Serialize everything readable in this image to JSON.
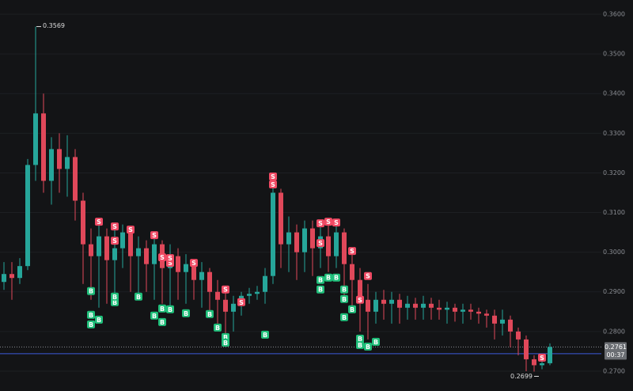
{
  "chart_data": {
    "type": "candlestick",
    "ylim": [
      0.265,
      0.3636
    ],
    "yticks": [
      {
        "value": 0.27,
        "label": "0.2700"
      },
      {
        "value": 0.28,
        "label": "0.2800"
      },
      {
        "value": 0.29,
        "label": "0.2900"
      },
      {
        "value": 0.3,
        "label": "0.3000"
      },
      {
        "value": 0.31,
        "label": "0.3100"
      },
      {
        "value": 0.32,
        "label": "0.3200"
      },
      {
        "value": 0.33,
        "label": "0.3300"
      },
      {
        "value": 0.34,
        "label": "0.3400"
      },
      {
        "value": 0.35,
        "label": "0.3500"
      },
      {
        "value": 0.36,
        "label": "0.3600"
      }
    ],
    "grid": true,
    "up_color": "#26a69a",
    "down_color": "#e0485a",
    "open": [
      0.2925,
      0.2945,
      0.2935,
      0.2965,
      0.322,
      0.335,
      0.318,
      0.326,
      0.321,
      0.324,
      0.313,
      0.302,
      0.299,
      0.304,
      0.298,
      0.301,
      0.305,
      0.299,
      0.301,
      0.297,
      0.302,
      0.296,
      0.299,
      0.295,
      0.297,
      0.293,
      0.295,
      0.29,
      0.288,
      0.285,
      0.287,
      0.289,
      0.2895,
      0.29,
      0.294,
      0.315,
      0.302,
      0.305,
      0.3,
      0.306,
      0.301,
      0.304,
      0.299,
      0.305,
      0.297,
      0.293,
      0.288,
      0.285,
      0.288,
      0.287,
      0.288,
      0.286,
      0.287,
      0.286,
      0.287,
      0.286,
      0.2855,
      0.286,
      0.285,
      0.2855,
      0.285,
      0.2845,
      0.284,
      0.282,
      0.283,
      0.28,
      0.278,
      0.273,
      0.2715,
      0.272
    ],
    "high": [
      0.2975,
      0.2975,
      0.2985,
      0.3235,
      0.3569,
      0.34,
      0.329,
      0.33,
      0.3295,
      0.326,
      0.315,
      0.306,
      0.307,
      0.306,
      0.306,
      0.307,
      0.306,
      0.304,
      0.303,
      0.305,
      0.303,
      0.302,
      0.301,
      0.2995,
      0.298,
      0.2975,
      0.296,
      0.293,
      0.291,
      0.289,
      0.29,
      0.291,
      0.2915,
      0.296,
      0.318,
      0.316,
      0.309,
      0.307,
      0.308,
      0.308,
      0.307,
      0.307,
      0.307,
      0.306,
      0.3,
      0.296,
      0.292,
      0.29,
      0.2905,
      0.29,
      0.2895,
      0.289,
      0.2885,
      0.289,
      0.2885,
      0.288,
      0.2875,
      0.287,
      0.287,
      0.287,
      0.286,
      0.2855,
      0.2855,
      0.2855,
      0.284,
      0.281,
      0.279,
      0.274,
      0.2735,
      0.277
    ],
    "low": [
      0.2905,
      0.288,
      0.292,
      0.2955,
      0.318,
      0.315,
      0.312,
      0.315,
      0.314,
      0.308,
      0.292,
      0.288,
      0.286,
      0.287,
      0.288,
      0.296,
      0.29,
      0.289,
      0.29,
      0.288,
      0.287,
      0.285,
      0.288,
      0.287,
      0.288,
      0.286,
      0.285,
      0.282,
      0.279,
      0.28,
      0.284,
      0.287,
      0.288,
      0.287,
      0.292,
      0.296,
      0.295,
      0.293,
      0.295,
      0.294,
      0.296,
      0.295,
      0.296,
      0.288,
      0.286,
      0.28,
      0.278,
      0.282,
      0.283,
      0.282,
      0.282,
      0.283,
      0.283,
      0.283,
      0.283,
      0.283,
      0.282,
      0.2825,
      0.282,
      0.283,
      0.282,
      0.281,
      0.278,
      0.279,
      0.276,
      0.274,
      0.27,
      0.2699,
      0.2705,
      0.2715
    ],
    "close": [
      0.2945,
      0.2935,
      0.2965,
      0.322,
      0.335,
      0.318,
      0.326,
      0.321,
      0.324,
      0.313,
      0.302,
      0.299,
      0.304,
      0.298,
      0.301,
      0.305,
      0.299,
      0.301,
      0.297,
      0.302,
      0.296,
      0.299,
      0.295,
      0.297,
      0.293,
      0.295,
      0.29,
      0.288,
      0.285,
      0.287,
      0.289,
      0.2895,
      0.29,
      0.294,
      0.315,
      0.302,
      0.305,
      0.3,
      0.306,
      0.301,
      0.304,
      0.299,
      0.305,
      0.297,
      0.293,
      0.288,
      0.285,
      0.288,
      0.287,
      0.288,
      0.286,
      0.287,
      0.286,
      0.287,
      0.286,
      0.2855,
      0.286,
      0.285,
      0.2855,
      0.285,
      0.2845,
      0.284,
      0.282,
      0.283,
      0.28,
      0.278,
      0.273,
      0.2715,
      0.272,
      0.2761
    ],
    "buy_label": "B",
    "sell_label": "S",
    "buy_color": "#1fbf7a",
    "sell_color": "#f04a64",
    "buys": [
      [
        11,
        0.2902
      ],
      [
        11,
        0.2842
      ],
      [
        11,
        0.2818
      ],
      [
        12,
        0.283
      ],
      [
        14,
        0.2874
      ],
      [
        14,
        0.2888
      ],
      [
        17,
        0.2888
      ],
      [
        19,
        0.284
      ],
      [
        20,
        0.2858
      ],
      [
        20,
        0.2824
      ],
      [
        21,
        0.2856
      ],
      [
        23,
        0.2846
      ],
      [
        26,
        0.2844
      ],
      [
        27,
        0.281
      ],
      [
        28,
        0.2786
      ],
      [
        28,
        0.2772
      ],
      [
        33,
        0.2792
      ],
      [
        40,
        0.293
      ],
      [
        40,
        0.2906
      ],
      [
        41,
        0.2936
      ],
      [
        42,
        0.2936
      ],
      [
        43,
        0.2906
      ],
      [
        43,
        0.2882
      ],
      [
        43,
        0.2836
      ],
      [
        44,
        0.2856
      ],
      [
        45,
        0.2782
      ],
      [
        45,
        0.2766
      ],
      [
        46,
        0.2762
      ],
      [
        47,
        0.2774
      ]
    ],
    "sells": [
      [
        12,
        0.3077
      ],
      [
        14,
        0.3065
      ],
      [
        14,
        0.3029
      ],
      [
        16,
        0.3057
      ],
      [
        19,
        0.3043
      ],
      [
        20,
        0.2987
      ],
      [
        21,
        0.2973
      ],
      [
        21,
        0.2985
      ],
      [
        24,
        0.2973
      ],
      [
        28,
        0.2906
      ],
      [
        30,
        0.2874
      ],
      [
        34,
        0.3191
      ],
      [
        34,
        0.3171
      ],
      [
        40,
        0.3073
      ],
      [
        40,
        0.3023
      ],
      [
        41,
        0.3077
      ],
      [
        42,
        0.3075
      ],
      [
        44,
        0.3003
      ],
      [
        46,
        0.294
      ],
      [
        45,
        0.288
      ],
      [
        68,
        0.2734
      ]
    ],
    "high_label": {
      "value": 0.3569,
      "label": "0.3569"
    },
    "low_label": {
      "value": 0.2699,
      "label": "0.2699"
    },
    "current_price": {
      "value": 0.2761,
      "label": "0.2761"
    },
    "countdown": "00:37",
    "level_line": 0.2744,
    "level_color": "#3b5bdb"
  }
}
